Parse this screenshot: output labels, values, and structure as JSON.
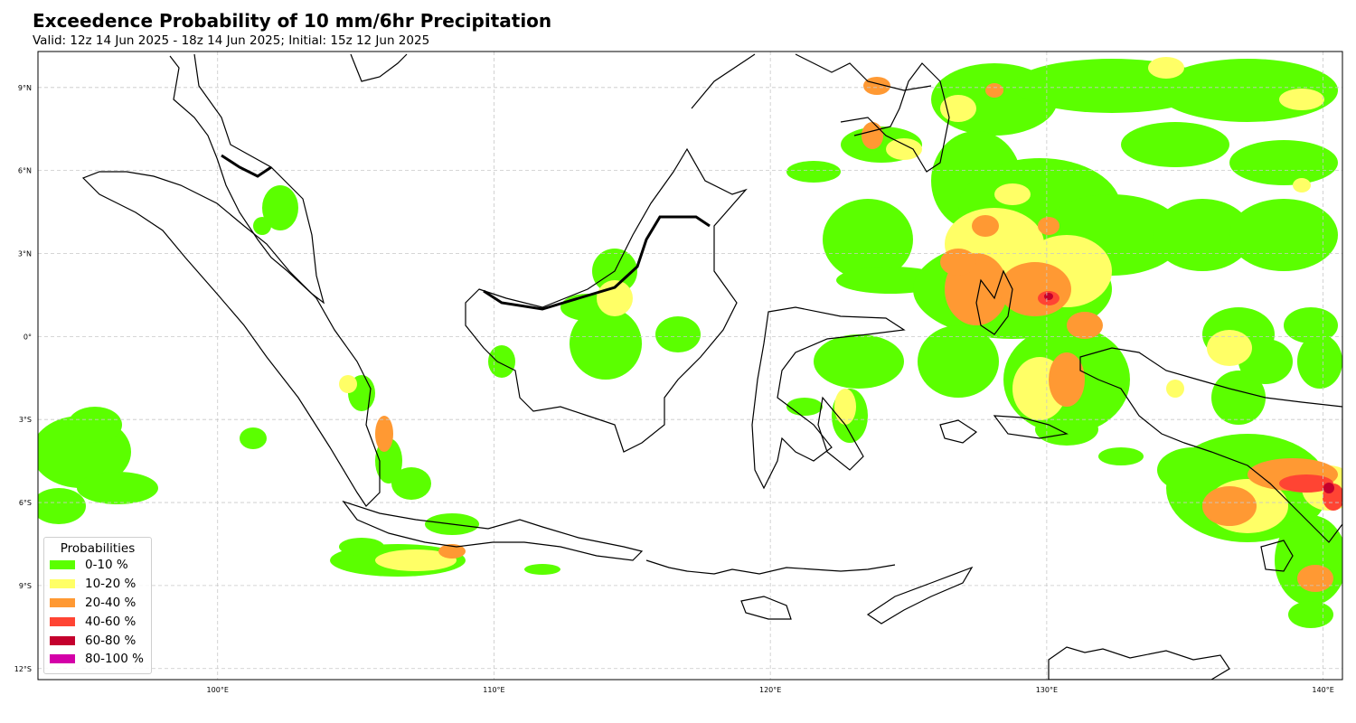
{
  "title": "Exceedence Probability of 10 mm/6hr Precipitation",
  "subtitle": "Valid: 12z 14 Jun 2025 - 18z 14 Jun 2025; Initial: 15z 12 Jun 2025",
  "map": {
    "lon_range": [
      93.5,
      140.7
    ],
    "lat_range": [
      -12.4,
      10.3
    ],
    "lon_ticks": [
      "100°E",
      "110°E",
      "120°E",
      "130°E",
      "140°E"
    ],
    "lat_ticks": [
      "9°N",
      "6°N",
      "3°N",
      "0°",
      "3°S",
      "6°S",
      "9°S",
      "12°S"
    ],
    "lon_tick_values": [
      100,
      110,
      120,
      130,
      140
    ],
    "lat_tick_values": [
      9,
      6,
      3,
      0,
      -3,
      -6,
      -9,
      -12
    ],
    "gridlines": "dashed"
  },
  "legend": {
    "title": "Probabilities",
    "items": [
      {
        "label": "0-10 %",
        "color": "#5bff00"
      },
      {
        "label": "10-20 %",
        "color": "#ffff66"
      },
      {
        "label": "20-40 %",
        "color": "#ff9933"
      },
      {
        "label": "40-60 %",
        "color": "#ff4433"
      },
      {
        "label": "60-80 %",
        "color": "#c4002d"
      },
      {
        "label": "80-100 %",
        "color": "#d400a8"
      }
    ]
  }
}
